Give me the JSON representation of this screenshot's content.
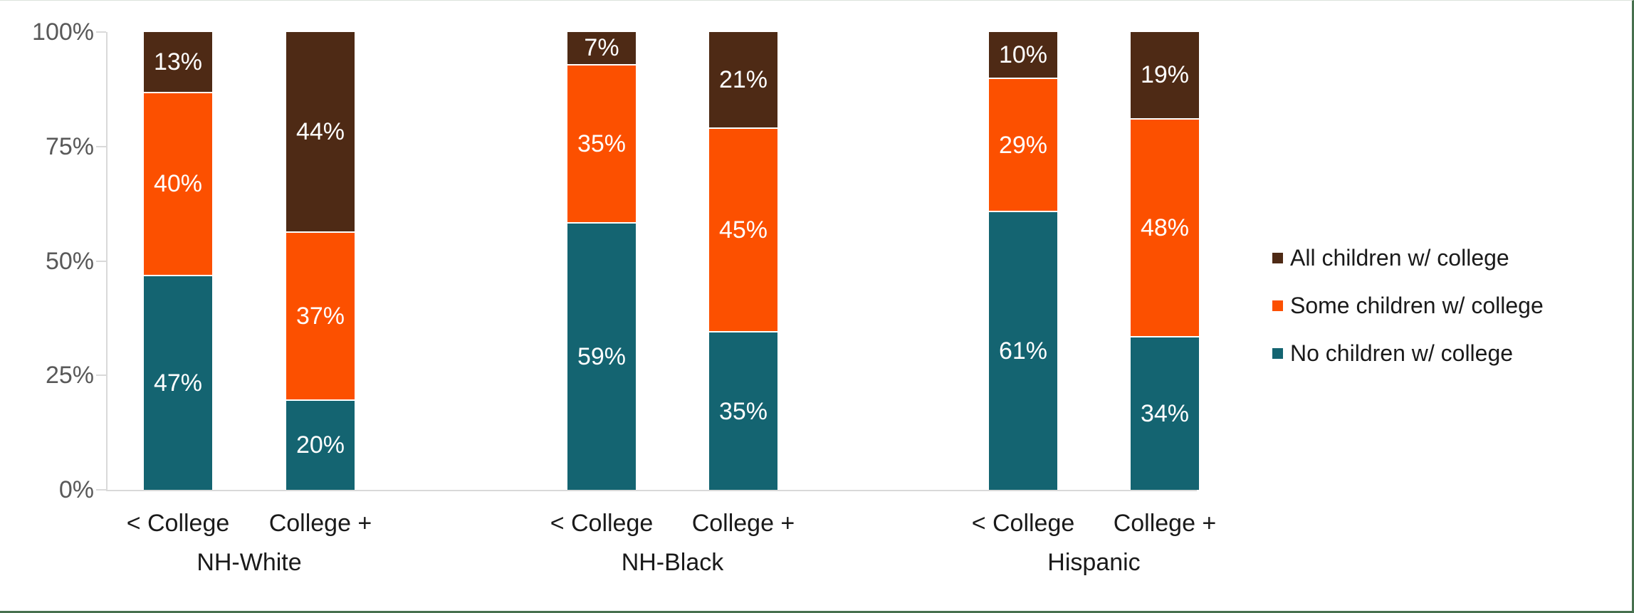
{
  "chart_data": {
    "type": "bar",
    "stacking": "percent",
    "title": "",
    "xlabel": "",
    "ylabel": "",
    "ylim": [
      0,
      100
    ],
    "grid": false,
    "legend_position": "right",
    "colors": {
      "all_children": "#4e2a15",
      "some_children": "#fc5000",
      "no_children": "#146471",
      "axis_line": "#d9d9d9",
      "y_tick_text": "#595959",
      "x_tick_text": "#1a1a1a",
      "data_label_text": "#ffffff",
      "frame_border": "#46704e"
    },
    "y_axis": {
      "ticks": [
        {
          "value": 0,
          "label": "0%"
        },
        {
          "value": 25,
          "label": "25%"
        },
        {
          "value": 50,
          "label": "50%"
        },
        {
          "value": 75,
          "label": "75%"
        },
        {
          "value": 100,
          "label": "100%"
        }
      ]
    },
    "series": [
      {
        "key": "all",
        "name": "All children w/ college",
        "color": "#4e2a15"
      },
      {
        "key": "some",
        "name": "Some children w/ college",
        "color": "#fc5000"
      },
      {
        "key": "no",
        "name": "No children w/ college",
        "color": "#146471"
      }
    ],
    "groups": [
      {
        "label": "NH-White",
        "bars": [
          {
            "label": "< College",
            "segments": [
              {
                "series": "no",
                "value": 47,
                "label": "47%"
              },
              {
                "series": "some",
                "value": 40,
                "label": "40%"
              },
              {
                "series": "all",
                "value": 13,
                "label": "13%"
              }
            ]
          },
          {
            "label": "College +",
            "segments": [
              {
                "series": "no",
                "value": 20,
                "label": "20%"
              },
              {
                "series": "some",
                "value": 37,
                "label": "37%"
              },
              {
                "series": "all",
                "value": 44,
                "label": "44%"
              }
            ]
          }
        ]
      },
      {
        "label": "NH-Black",
        "bars": [
          {
            "label": "< College",
            "segments": [
              {
                "series": "no",
                "value": 59,
                "label": "59%"
              },
              {
                "series": "some",
                "value": 35,
                "label": "35%"
              },
              {
                "series": "all",
                "value": 7,
                "label": "7%"
              }
            ]
          },
          {
            "label": "College +",
            "segments": [
              {
                "series": "no",
                "value": 35,
                "label": "35%"
              },
              {
                "series": "some",
                "value": 45,
                "label": "45%"
              },
              {
                "series": "all",
                "value": 21,
                "label": "21%"
              }
            ]
          }
        ]
      },
      {
        "label": "Hispanic",
        "bars": [
          {
            "label": "< College",
            "segments": [
              {
                "series": "no",
                "value": 61,
                "label": "61%"
              },
              {
                "series": "some",
                "value": 29,
                "label": "29%"
              },
              {
                "series": "all",
                "value": 10,
                "label": "10%"
              }
            ]
          },
          {
            "label": "College +",
            "segments": [
              {
                "series": "no",
                "value": 34,
                "label": "34%"
              },
              {
                "series": "some",
                "value": 48,
                "label": "48%"
              },
              {
                "series": "all",
                "value": 19,
                "label": "19%"
              }
            ]
          }
        ]
      }
    ]
  }
}
